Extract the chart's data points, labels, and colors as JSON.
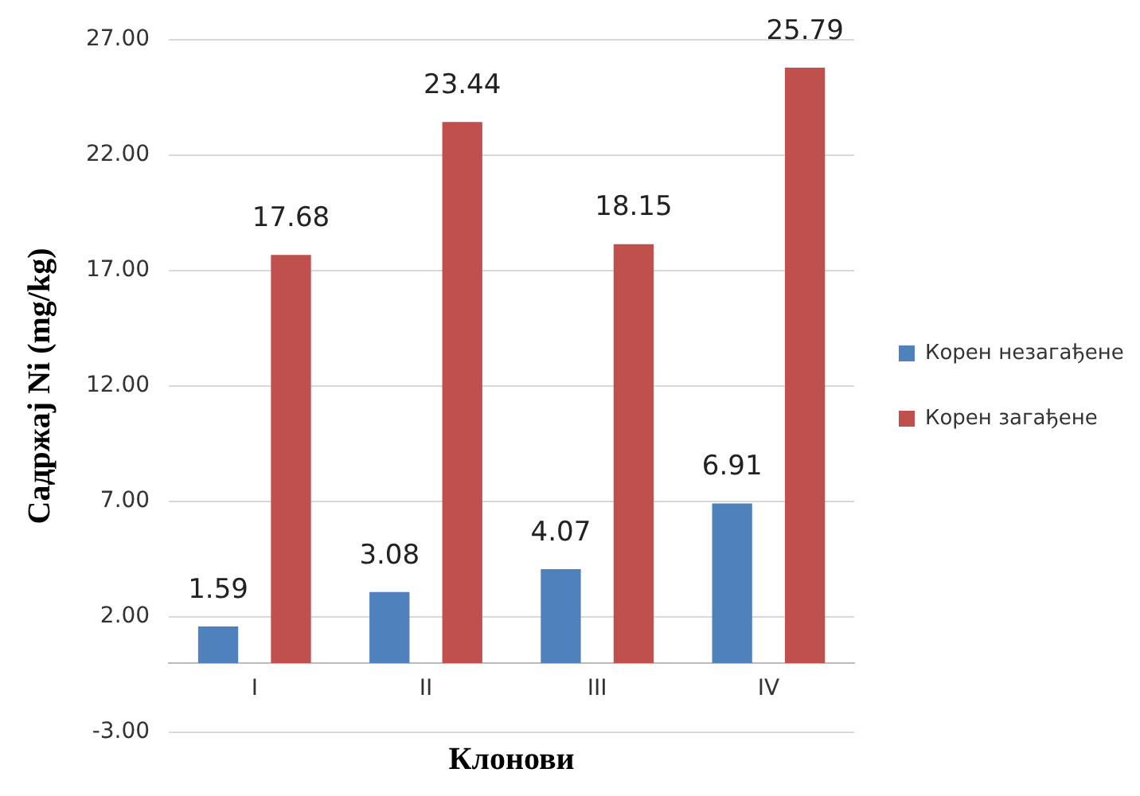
{
  "chart_data": {
    "type": "bar",
    "xlabel": "Клонови",
    "ylabel": "Садржај Ni (mg/kg)",
    "categories": [
      "I",
      "II",
      "III",
      "IV"
    ],
    "series": [
      {
        "name": "Корен незагађене",
        "color": "#4f81bd",
        "values": [
          1.59,
          3.08,
          4.07,
          6.91
        ]
      },
      {
        "name": "Корен загађене",
        "color": "#c0504d",
        "values": [
          17.68,
          23.44,
          18.15,
          25.79
        ]
      }
    ],
    "ylim": [
      -3,
      27
    ],
    "yticks": [
      {
        "value": -3,
        "label": "-3.00"
      },
      {
        "value": 2,
        "label": "2.00"
      },
      {
        "value": 7,
        "label": "7.00"
      },
      {
        "value": 12,
        "label": "12.00"
      },
      {
        "value": 17,
        "label": "17.00"
      },
      {
        "value": 22,
        "label": "22.00"
      },
      {
        "value": 27,
        "label": "27.00"
      }
    ],
    "grid": "y",
    "legend": "right",
    "data_labels": true
  }
}
